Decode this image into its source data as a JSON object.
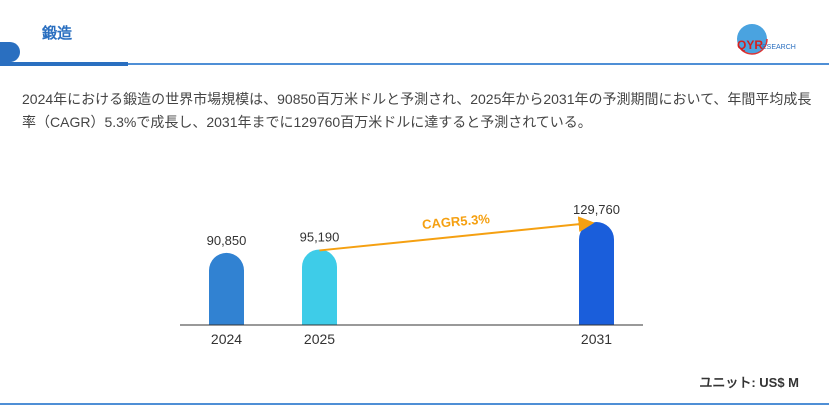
{
  "header": {
    "title": "鍛造",
    "logo_text": "QYRESEARCH"
  },
  "description": "2024年における鍛造の世界市場規模は、90850百万米ドルと予測され、2025年から2031年の予測期間において、年間平均成長率（CAGR）5.3%で成長し、2031年までに129760百万米ドルに達すると予測されている。",
  "unit_label": "ユニット: US$ M",
  "chart_data": {
    "type": "bar",
    "categories": [
      "2024",
      "2025",
      "2031"
    ],
    "values": [
      90850,
      95190,
      129760
    ],
    "value_labels": [
      "90,850",
      "95,190",
      "129,760"
    ],
    "colors": [
      "#3182d2",
      "#3ecce8",
      "#1a5edb"
    ],
    "annotation": {
      "text": "CAGR5.3%",
      "from": "2025",
      "to": "2031",
      "color": "#f5a011"
    },
    "ylim": [
      0,
      129760
    ],
    "grid": false
  }
}
